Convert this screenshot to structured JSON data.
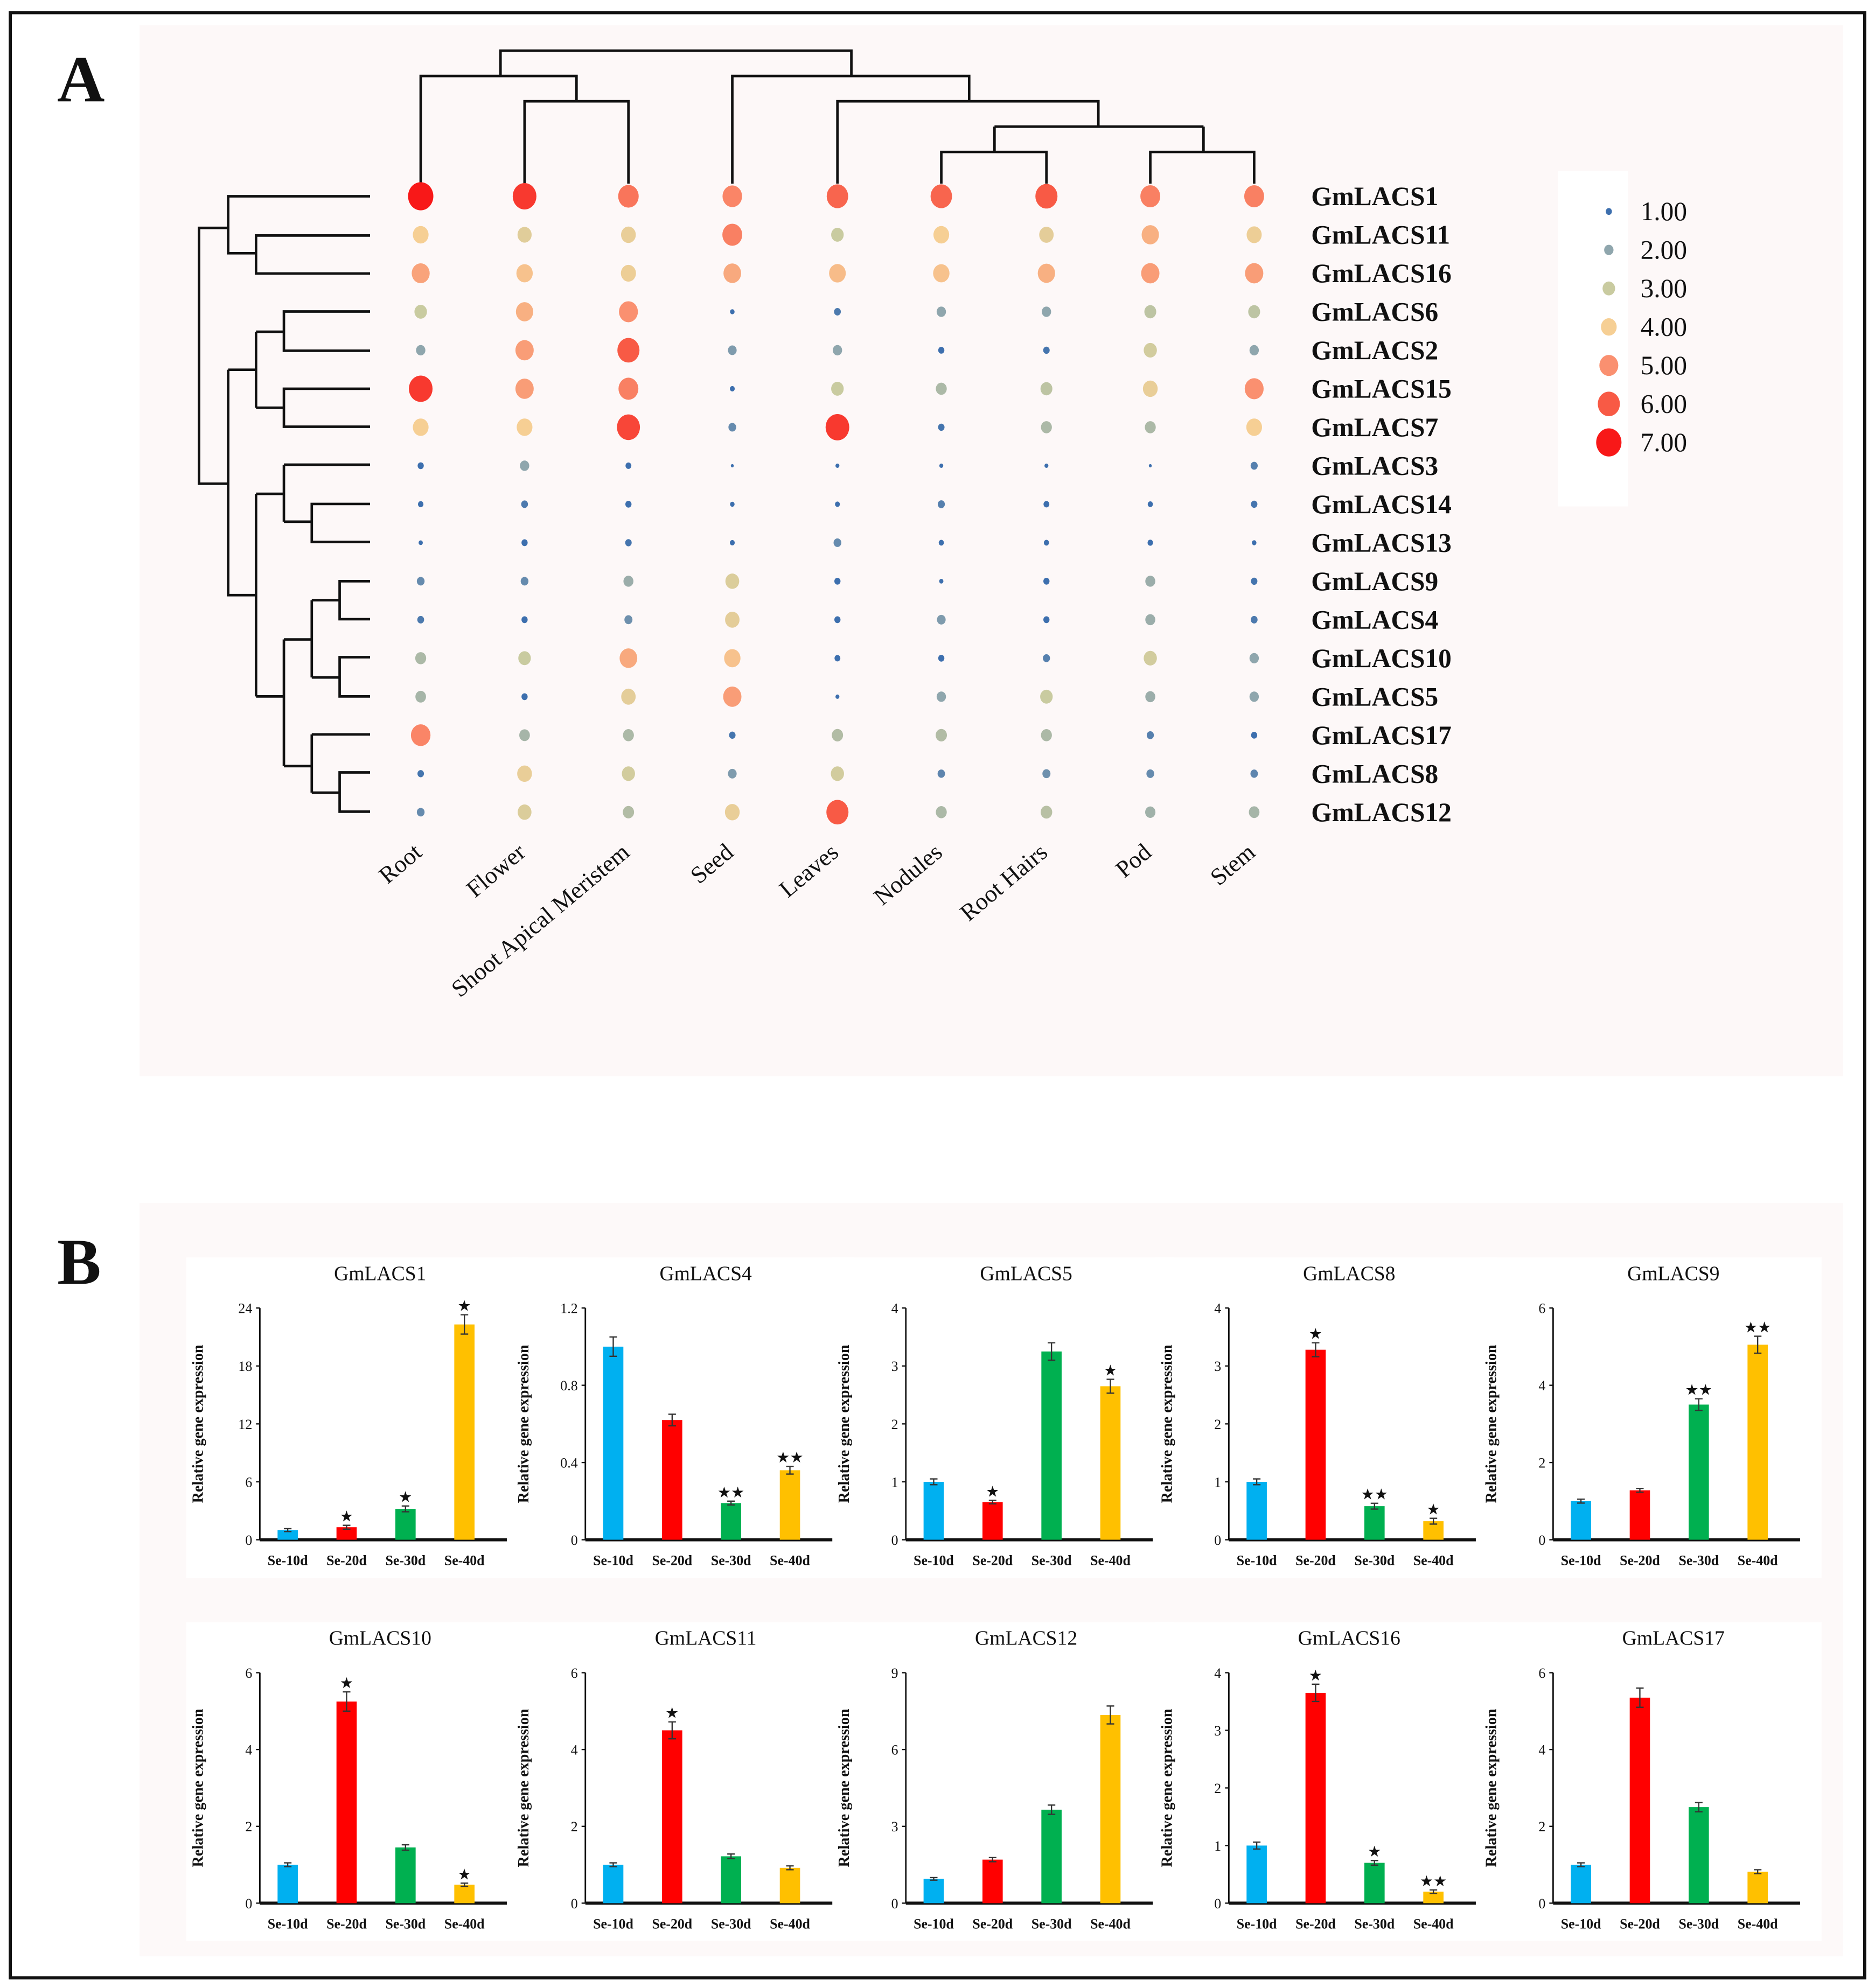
{
  "panel_a_label": "A",
  "panel_b_label": "B",
  "chart_data": [
    {
      "type": "bubble-heatmap",
      "title": "",
      "columns": [
        "Root",
        "Flower",
        "Shoot Apical Meristem",
        "Seed",
        "Leaves",
        "Nodules",
        "Root Hairs",
        "Pod",
        "Stem"
      ],
      "rows": [
        "GmLACS1",
        "GmLACS11",
        "GmLACS16",
        "GmLACS6",
        "GmLACS2",
        "GmLACS15",
        "GmLACS7",
        "GmLACS3",
        "GmLACS14",
        "GmLACS13",
        "GmLACS9",
        "GmLACS4",
        "GmLACS10",
        "GmLACS5",
        "GmLACS17",
        "GmLACS8",
        "GmLACS12"
      ],
      "values": [
        [
          7.0,
          6.5,
          5.5,
          5.2,
          5.8,
          5.8,
          6.0,
          5.3,
          5.3
        ],
        [
          4.0,
          3.5,
          3.7,
          5.3,
          3.0,
          4.0,
          3.6,
          4.5,
          3.8
        ],
        [
          4.7,
          4.2,
          3.8,
          4.6,
          4.3,
          4.2,
          4.5,
          4.8,
          4.8
        ],
        [
          3.0,
          4.5,
          5.0,
          0.5,
          1.2,
          2.0,
          2.0,
          2.8,
          2.8
        ],
        [
          2.0,
          4.8,
          6.0,
          1.8,
          2.0,
          1.0,
          1.1,
          3.2,
          2.0
        ],
        [
          6.5,
          4.8,
          5.3,
          0.6,
          3.0,
          2.5,
          2.8,
          3.7,
          5.0
        ],
        [
          4.0,
          4.0,
          6.3,
          1.5,
          6.5,
          1.1,
          2.5,
          2.5,
          4.0
        ],
        [
          1.0,
          2.0,
          0.9,
          0.0,
          0.3,
          0.3,
          0.3,
          0.0,
          1.3
        ],
        [
          0.8,
          1.2,
          1.0,
          0.5,
          0.6,
          1.3,
          0.9,
          0.7,
          1.1
        ],
        [
          0.4,
          1.0,
          1.1,
          0.6,
          1.5,
          0.7,
          0.7,
          0.8,
          0.5
        ],
        [
          1.5,
          1.5,
          2.2,
          3.4,
          1.0,
          0.4,
          1.0,
          2.2,
          1.1
        ],
        [
          1.2,
          1.0,
          1.6,
          3.6,
          1.0,
          1.8,
          1.0,
          2.2,
          1.2
        ],
        [
          2.5,
          3.0,
          4.6,
          4.2,
          0.9,
          1.0,
          1.3,
          3.2,
          2.0
        ],
        [
          2.4,
          1.0,
          3.6,
          4.8,
          0.3,
          2.0,
          3.0,
          2.2,
          2.0
        ],
        [
          5.2,
          2.4,
          2.5,
          1.1,
          2.6,
          2.6,
          2.5,
          1.3,
          1.0
        ],
        [
          1.1,
          3.7,
          3.2,
          1.8,
          3.2,
          1.4,
          1.6,
          1.5,
          1.4
        ],
        [
          1.5,
          3.4,
          2.6,
          3.7,
          6.0,
          2.5,
          2.7,
          2.3,
          2.4
        ]
      ],
      "legend": {
        "values": [
          1,
          2,
          3,
          4,
          5,
          6,
          7
        ],
        "labels": [
          "1.00",
          "2.00",
          "3.00",
          "4.00",
          "5.00",
          "6.00",
          "7.00"
        ],
        "placement": "right"
      },
      "color_scale": [
        "#3d6fae",
        "#8fa6ad",
        "#c9cba0",
        "#f6cf94",
        "#fa9070",
        "#f85a45",
        "#f81818"
      ]
    },
    {
      "type": "bar",
      "ylabel": "Relative gene expression",
      "categories": [
        "Se-10d",
        "Se-20d",
        "Se-30d",
        "Se-40d"
      ],
      "bar_colors": [
        "#00b0f0",
        "#ff0000",
        "#00b050",
        "#ffc000"
      ],
      "panels": [
        {
          "title": "GmLACS1",
          "ylim": [
            0,
            24
          ],
          "ticks": [
            "0",
            "6",
            "12",
            "18",
            "24"
          ],
          "values": [
            1.0,
            1.3,
            3.2,
            22.3
          ],
          "errors": [
            0.15,
            0.2,
            0.3,
            1.0
          ],
          "stars": [
            "",
            "★",
            "★",
            "★"
          ]
        },
        {
          "title": "GmLACS4",
          "ylim": [
            0,
            1.2
          ],
          "ticks": [
            "0",
            "0.4",
            "0.8",
            "1.2"
          ],
          "values": [
            1.0,
            0.62,
            0.19,
            0.36
          ],
          "errors": [
            0.05,
            0.03,
            0.01,
            0.02
          ],
          "stars": [
            "",
            "",
            "★★",
            "★★"
          ]
        },
        {
          "title": "GmLACS5",
          "ylim": [
            0,
            4
          ],
          "ticks": [
            "0",
            "1",
            "2",
            "3",
            "4"
          ],
          "values": [
            1.0,
            0.65,
            3.25,
            2.65
          ],
          "errors": [
            0.05,
            0.03,
            0.15,
            0.12
          ],
          "stars": [
            "",
            "★",
            "",
            "★"
          ]
        },
        {
          "title": "GmLACS8",
          "ylim": [
            0,
            4
          ],
          "ticks": [
            "0",
            "1",
            "2",
            "3",
            "4"
          ],
          "values": [
            1.0,
            3.28,
            0.58,
            0.32
          ],
          "errors": [
            0.05,
            0.12,
            0.05,
            0.05
          ],
          "stars": [
            "",
            "★",
            "★★",
            "★"
          ]
        },
        {
          "title": "GmLACS9",
          "ylim": [
            0,
            6
          ],
          "ticks": [
            "0",
            "2",
            "4",
            "6"
          ],
          "values": [
            1.0,
            1.28,
            3.5,
            5.05
          ],
          "errors": [
            0.05,
            0.05,
            0.15,
            0.22
          ],
          "stars": [
            "",
            "",
            "★★",
            "★★"
          ]
        },
        {
          "title": "GmLACS10",
          "ylim": [
            0,
            6
          ],
          "ticks": [
            "0",
            "2",
            "4",
            "6"
          ],
          "values": [
            1.0,
            5.25,
            1.45,
            0.48
          ],
          "errors": [
            0.05,
            0.25,
            0.07,
            0.04
          ],
          "stars": [
            "",
            "★",
            "",
            "★"
          ]
        },
        {
          "title": "GmLACS11",
          "ylim": [
            0,
            6
          ],
          "ticks": [
            "0",
            "2",
            "4",
            "6"
          ],
          "values": [
            1.0,
            4.5,
            1.22,
            0.92
          ],
          "errors": [
            0.05,
            0.22,
            0.06,
            0.05
          ],
          "stars": [
            "",
            "★",
            "",
            ""
          ]
        },
        {
          "title": "GmLACS12",
          "ylim": [
            0,
            9
          ],
          "ticks": [
            "0",
            "3",
            "6",
            "9"
          ],
          "values": [
            0.95,
            1.7,
            3.65,
            7.35
          ],
          "errors": [
            0.05,
            0.08,
            0.18,
            0.35
          ],
          "stars": [
            "",
            "",
            "",
            ""
          ]
        },
        {
          "title": "GmLACS16",
          "ylim": [
            0,
            4
          ],
          "ticks": [
            "0",
            "1",
            "2",
            "3",
            "4"
          ],
          "values": [
            1.0,
            3.65,
            0.7,
            0.2
          ],
          "errors": [
            0.06,
            0.15,
            0.04,
            0.03
          ],
          "stars": [
            "",
            "★",
            "★",
            "★★"
          ]
        },
        {
          "title": "GmLACS17",
          "ylim": [
            0,
            6
          ],
          "ticks": [
            "0",
            "2",
            "4",
            "6"
          ],
          "values": [
            1.0,
            5.35,
            2.5,
            0.82
          ],
          "errors": [
            0.05,
            0.25,
            0.12,
            0.05
          ],
          "stars": [
            "",
            "",
            "",
            ""
          ]
        }
      ]
    }
  ]
}
